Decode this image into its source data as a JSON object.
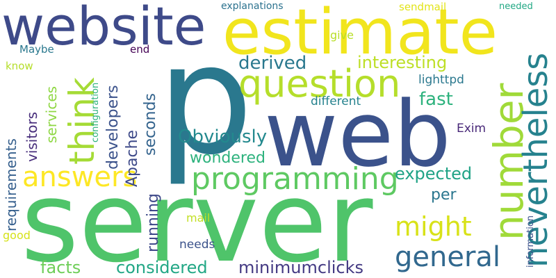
{
  "words": [
    {
      "key": "p",
      "text": "p",
      "color": "#2a788e"
    },
    {
      "key": "server",
      "text": "server",
      "color": "#4fc46a"
    },
    {
      "key": "web",
      "text": "web",
      "color": "#3b528b"
    },
    {
      "key": "estimate",
      "text": "estimate",
      "color": "#f1e51d"
    },
    {
      "key": "website",
      "text": "website",
      "color": "#3e4a89"
    },
    {
      "key": "number",
      "text": "number",
      "color": "#a0da39"
    },
    {
      "key": "question",
      "text": "question",
      "color": "#b5de2b"
    },
    {
      "key": "programming",
      "text": "programming",
      "color": "#5ec962"
    },
    {
      "key": "nevertheless",
      "text": "nevertheless",
      "color": "#26828e"
    },
    {
      "key": "think",
      "text": "think",
      "color": "#a5db36"
    },
    {
      "key": "answers",
      "text": "answers",
      "color": "#fde725"
    },
    {
      "key": "general",
      "text": "general",
      "color": "#31688e"
    },
    {
      "key": "might",
      "text": "might",
      "color": "#d8e219"
    },
    {
      "key": "Obviously",
      "text": "Obviously",
      "color": "#23898e"
    },
    {
      "key": "minimumclicks",
      "text": "minimumclicks",
      "color": "#443a83"
    },
    {
      "key": "considered",
      "text": "considered",
      "color": "#22a785"
    },
    {
      "key": "facts",
      "text": "facts",
      "color": "#6ece58"
    },
    {
      "key": "wondered",
      "text": "wondered",
      "color": "#2db27d"
    },
    {
      "key": "expected",
      "text": "expected",
      "color": "#20a386"
    },
    {
      "key": "derived",
      "text": "derived",
      "color": "#2a788e"
    },
    {
      "key": "interesting",
      "text": "interesting",
      "color": "#bddf26"
    },
    {
      "key": "fast",
      "text": "fast",
      "color": "#2db27d"
    },
    {
      "key": "running",
      "text": "running",
      "color": "#3e4989"
    },
    {
      "key": "seconds",
      "text": "seconds",
      "color": "#33638d"
    },
    {
      "key": "developers",
      "text": "developers",
      "color": "#3b528b"
    },
    {
      "key": "Apache",
      "text": "Apache",
      "color": "#3e4a89"
    },
    {
      "key": "services",
      "text": "services",
      "color": "#8fd744"
    },
    {
      "key": "visitors",
      "text": "visitors",
      "color": "#472d7b"
    },
    {
      "key": "requirements",
      "text": "requirements",
      "color": "#355f8d"
    },
    {
      "key": "per",
      "text": "per",
      "color": "#2a768e"
    },
    {
      "key": "needs",
      "text": "needs",
      "color": "#3b528b"
    },
    {
      "key": "mail",
      "text": "mail",
      "color": "#c2df23"
    },
    {
      "key": "good",
      "text": "good",
      "color": "#d5e21a"
    },
    {
      "key": "Exim",
      "text": "Exim",
      "color": "#482878"
    },
    {
      "key": "lighttpd",
      "text": "lighttpd",
      "color": "#2a788e"
    },
    {
      "key": "different",
      "text": "different",
      "color": "#26828e"
    },
    {
      "key": "configuration",
      "text": "configuration",
      "color": "#2db27d"
    },
    {
      "key": "information",
      "text": "information",
      "color": "#3b528b"
    },
    {
      "key": "explanations",
      "text": "explanations",
      "color": "#2c728e"
    },
    {
      "key": "sendmail",
      "text": "sendmail",
      "color": "#e2e418"
    },
    {
      "key": "needed",
      "text": "needed",
      "color": "#22a884"
    },
    {
      "key": "give",
      "text": "give",
      "color": "#b8de29"
    },
    {
      "key": "end",
      "text": "end",
      "color": "#440154"
    },
    {
      "key": "Maybe",
      "text": "Maybe",
      "color": "#2a788e"
    },
    {
      "key": "know",
      "text": "know",
      "color": "#b5de2b"
    }
  ]
}
